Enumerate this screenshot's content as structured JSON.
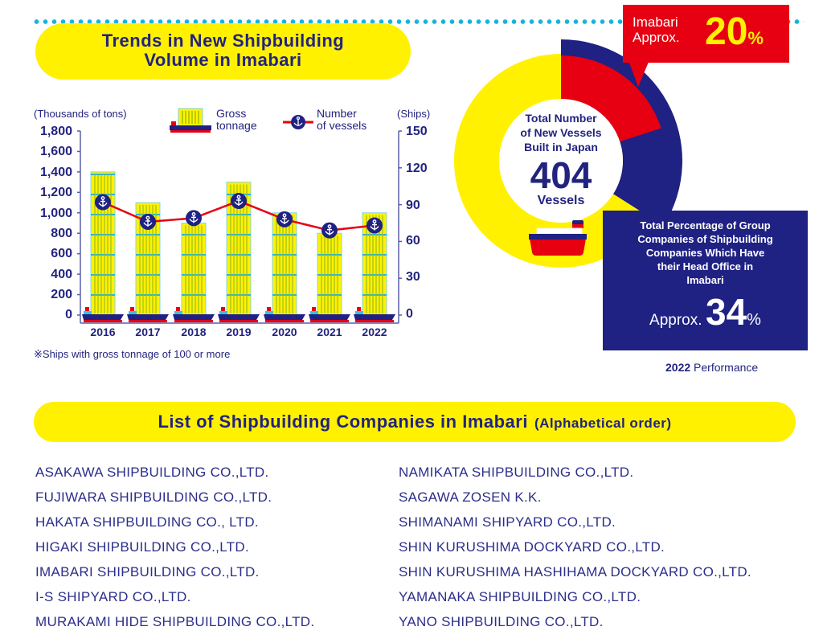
{
  "section1": {
    "title_line1": "Trends in New Shipbuilding",
    "title_line2": "Volume in Imabari"
  },
  "chart_legend": {
    "left_unit": "(Thousands of tons)",
    "right_unit": "(Ships)",
    "gross_tonnage_label_1": "Gross",
    "gross_tonnage_label_2": "tonnage",
    "vessels_label_1": "Number",
    "vessels_label_2": "of vessels"
  },
  "note": "※Ships with gross tonnage of 100 or more",
  "chart_data": [
    {
      "type": "bar+line",
      "title": "Trends in New Shipbuilding Volume in Imabari",
      "categories": [
        "2016",
        "2017",
        "2018",
        "2019",
        "2020",
        "2021",
        "2022"
      ],
      "series": [
        {
          "name": "Gross tonnage",
          "axis": "left",
          "unit": "Thousands of tons",
          "type": "bar",
          "values": [
            1400,
            1100,
            900,
            1300,
            1000,
            800,
            1000
          ]
        },
        {
          "name": "Number of vessels",
          "axis": "right",
          "unit": "Ships",
          "type": "line",
          "values": [
            92,
            76,
            79,
            93,
            78,
            69,
            73
          ]
        }
      ],
      "left_axis": {
        "label": "(Thousands of tons)",
        "ticks": [
          "1,800",
          "1,600",
          "1,400",
          "1,200",
          "1,000",
          "800",
          "600",
          "400",
          "200",
          "0"
        ],
        "range": [
          0,
          1800
        ]
      },
      "right_axis": {
        "label": "(Ships)",
        "ticks": [
          "150",
          "120",
          "90",
          "60",
          "30",
          "0"
        ],
        "range": [
          0,
          150
        ]
      },
      "legend": [
        "Gross tonnage",
        "Number of vessels"
      ],
      "legend_position": "top",
      "grid": false,
      "annotation": "※Ships with gross tonnage of 100 or more"
    },
    {
      "type": "pie",
      "title": "Total Number of New Vessels Built in Japan",
      "total": 404,
      "total_unit": "Vessels",
      "slices": [
        {
          "name": "Imabari",
          "value": 20,
          "unit": "%"
        },
        {
          "name": "Group companies of shipbuilders headquartered in Imabari",
          "value": 34,
          "unit": "%"
        }
      ],
      "annotation": "2022 Performance"
    }
  ],
  "donut": {
    "center_line1": "Total Number",
    "center_line2": "of New Vessels",
    "center_line3": "Built in Japan",
    "total": "404",
    "unit": "Vessels",
    "red_callout": {
      "line1": "Imabari",
      "line2": "Approx.",
      "value": "20",
      "pct": "%"
    },
    "navy_callout": {
      "line1": "Total Percentage of Group",
      "line2": "Companies of Shipbuilding",
      "line3": "Companies Which Have",
      "line4": "their Head Office  in",
      "line5": "Imabari",
      "approx": "Approx.",
      "value": "34",
      "pct": "%"
    },
    "performance_year": "2022",
    "performance_label": "Performance",
    "colors": {
      "yellow": "#fff100",
      "red": "#e60012",
      "navy": "#1f2183"
    }
  },
  "section2": {
    "title": "List of Shipbuilding Companies in Imabari",
    "subtitle": "(Alphabetical order)"
  },
  "companies_left": [
    "ASAKAWA SHIPBUILDING CO.,LTD.",
    "FUJIWARA SHIPBUILDING CO.,LTD.",
    "HAKATA SHIPBUILDING CO., LTD.",
    "HIGAKI SHIPBUILDING CO.,LTD.",
    "IMABARI SHIPBUILDING CO.,LTD.",
    "I-S SHIPYARD CO.,LTD.",
    "MURAKAMI HIDE SHIPBUILDING CO.,LTD."
  ],
  "companies_right": [
    "NAMIKATA SHIPBUILDING CO.,LTD.",
    "SAGAWA ZOSEN K.K.",
    "SHIMANAMI SHIPYARD CO.,LTD.",
    "SHIN KURUSHIMA DOCKYARD CO.,LTD.",
    "SHIN KURUSHIMA HASHIHAMA DOCKYARD CO.,LTD.",
    "YAMANAKA SHIPBUILDING CO.,LTD.",
    "YANO SHIPBUILDING CO.,LTD."
  ]
}
